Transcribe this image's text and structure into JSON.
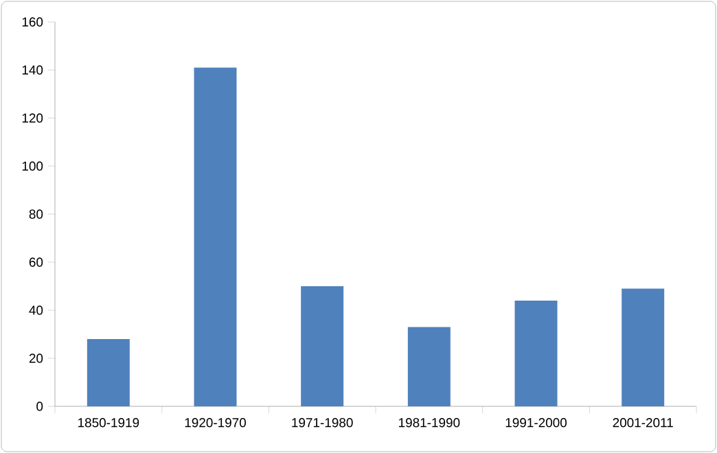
{
  "chart_data": {
    "type": "bar",
    "categories": [
      "1850-1919",
      "1920-1970",
      "1971-1980",
      "1981-1990",
      "1991-2000",
      "2001-2011"
    ],
    "values": [
      28,
      141,
      50,
      33,
      44,
      49
    ],
    "color": "#4f81bd",
    "ylim": [
      0,
      160
    ],
    "yticks": [
      0,
      20,
      40,
      60,
      80,
      100,
      120,
      140,
      160
    ],
    "grid": false
  }
}
